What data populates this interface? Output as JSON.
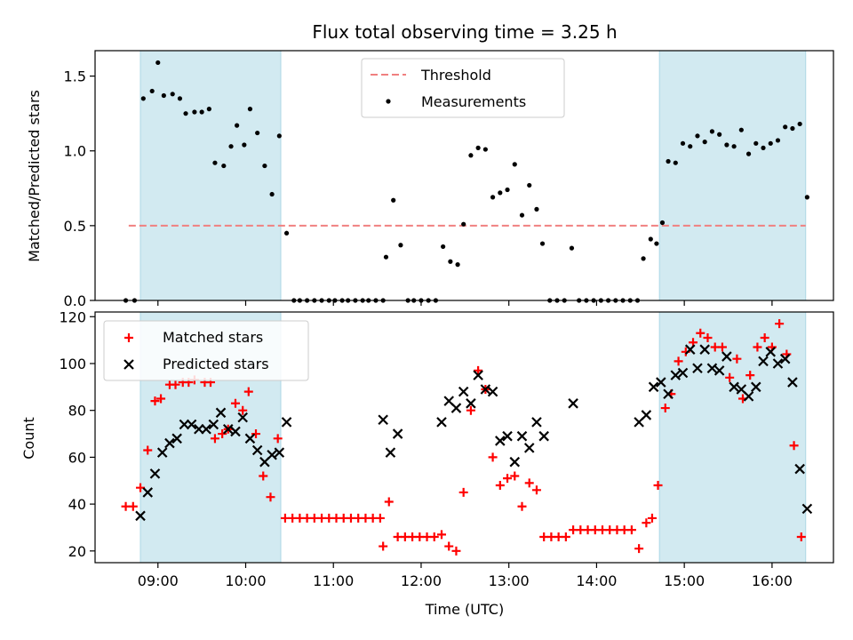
{
  "chart_data": [
    {
      "type": "scatter",
      "title": "Flux total observing time = 3.25 h",
      "ylabel": "Matched/Predicted stars",
      "xlim": [
        "08:17",
        "16:42"
      ],
      "ylim": [
        0,
        1.67
      ],
      "yticks": [
        "0.0",
        "0.5",
        "1.0",
        "1.5"
      ],
      "shaded_spans": [
        [
          "08:48",
          "10:24"
        ],
        [
          "14:43",
          "16:23"
        ]
      ],
      "shade_color": "#add8e6",
      "threshold": {
        "name": "Threshold",
        "y": 0.5,
        "color": "#f08080",
        "style": "dashed",
        "x_range": [
          "08:40",
          "16:23"
        ]
      },
      "series": [
        {
          "name": "Measurements",
          "color": "#000000",
          "points": [
            [
              "08:38",
              0.0
            ],
            [
              "08:44",
              0.0
            ],
            [
              "08:50",
              1.35
            ],
            [
              "08:56",
              1.4
            ],
            [
              "09:00",
              1.59
            ],
            [
              "09:04",
              1.37
            ],
            [
              "09:10",
              1.38
            ],
            [
              "09:15",
              1.35
            ],
            [
              "09:19",
              1.25
            ],
            [
              "09:25",
              1.26
            ],
            [
              "09:30",
              1.26
            ],
            [
              "09:35",
              1.28
            ],
            [
              "09:39",
              0.92
            ],
            [
              "09:45",
              0.9
            ],
            [
              "09:50",
              1.03
            ],
            [
              "09:54",
              1.17
            ],
            [
              "09:59",
              1.04
            ],
            [
              "10:03",
              1.28
            ],
            [
              "10:08",
              1.12
            ],
            [
              "10:13",
              0.9
            ],
            [
              "10:18",
              0.71
            ],
            [
              "10:23",
              1.1
            ],
            [
              "10:28",
              0.45
            ],
            [
              "10:33",
              0.0
            ],
            [
              "10:37",
              0.0
            ],
            [
              "10:42",
              0.0
            ],
            [
              "10:47",
              0.0
            ],
            [
              "10:52",
              0.0
            ],
            [
              "10:57",
              0.0
            ],
            [
              "11:01",
              0.0
            ],
            [
              "11:06",
              0.0
            ],
            [
              "11:10",
              0.0
            ],
            [
              "11:15",
              0.0
            ],
            [
              "11:20",
              0.0
            ],
            [
              "11:24",
              0.0
            ],
            [
              "11:29",
              0.0
            ],
            [
              "11:34",
              0.0
            ],
            [
              "11:36",
              0.29
            ],
            [
              "11:41",
              0.67
            ],
            [
              "11:46",
              0.37
            ],
            [
              "11:51",
              0.0
            ],
            [
              "11:55",
              0.0
            ],
            [
              "12:00",
              0.0
            ],
            [
              "12:05",
              0.0
            ],
            [
              "12:10",
              0.0
            ],
            [
              "12:15",
              0.36
            ],
            [
              "12:20",
              0.26
            ],
            [
              "12:25",
              0.24
            ],
            [
              "12:29",
              0.51
            ],
            [
              "12:34",
              0.97
            ],
            [
              "12:39",
              1.02
            ],
            [
              "12:44",
              1.01
            ],
            [
              "12:49",
              0.69
            ],
            [
              "12:54",
              0.72
            ],
            [
              "12:59",
              0.74
            ],
            [
              "13:04",
              0.91
            ],
            [
              "13:09",
              0.57
            ],
            [
              "13:14",
              0.77
            ],
            [
              "13:19",
              0.61
            ],
            [
              "13:23",
              0.38
            ],
            [
              "13:28",
              0.0
            ],
            [
              "13:33",
              0.0
            ],
            [
              "13:38",
              0.0
            ],
            [
              "13:43",
              0.35
            ],
            [
              "13:48",
              0.0
            ],
            [
              "13:53",
              0.0
            ],
            [
              "13:58",
              0.0
            ],
            [
              "14:03",
              0.0
            ],
            [
              "14:08",
              0.0
            ],
            [
              "14:13",
              0.0
            ],
            [
              "14:18",
              0.0
            ],
            [
              "14:23",
              0.0
            ],
            [
              "14:28",
              0.0
            ],
            [
              "14:32",
              0.28
            ],
            [
              "14:37",
              0.41
            ],
            [
              "14:41",
              0.38
            ],
            [
              "14:45",
              0.52
            ],
            [
              "14:49",
              0.93
            ],
            [
              "14:54",
              0.92
            ],
            [
              "14:59",
              1.05
            ],
            [
              "15:04",
              1.03
            ],
            [
              "15:09",
              1.1
            ],
            [
              "15:14",
              1.06
            ],
            [
              "15:19",
              1.13
            ],
            [
              "15:24",
              1.11
            ],
            [
              "15:29",
              1.04
            ],
            [
              "15:34",
              1.03
            ],
            [
              "15:39",
              1.14
            ],
            [
              "15:44",
              0.98
            ],
            [
              "15:49",
              1.05
            ],
            [
              "15:54",
              1.02
            ],
            [
              "15:59",
              1.05
            ],
            [
              "16:04",
              1.07
            ],
            [
              "16:09",
              1.16
            ],
            [
              "16:14",
              1.15
            ],
            [
              "16:19",
              1.18
            ],
            [
              "16:24",
              0.69
            ]
          ]
        }
      ]
    },
    {
      "type": "scatter",
      "xlabel": "Time (UTC)",
      "ylabel": "Count",
      "xlim": [
        "08:17",
        "16:42"
      ],
      "ylim": [
        15,
        122
      ],
      "xticks": [
        "09:00",
        "10:00",
        "11:00",
        "12:00",
        "13:00",
        "14:00",
        "15:00",
        "16:00"
      ],
      "yticks": [
        "20",
        "40",
        "60",
        "80",
        "100",
        "120"
      ],
      "shaded_spans": [
        [
          "08:48",
          "10:24"
        ],
        [
          "14:43",
          "16:23"
        ]
      ],
      "series": [
        {
          "name": "Matched stars",
          "marker": "plus",
          "color": "#ff0000",
          "points": [
            [
              "08:38",
              39
            ],
            [
              "08:43",
              39
            ],
            [
              "08:48",
              47
            ],
            [
              "08:53",
              63
            ],
            [
              "08:58",
              84
            ],
            [
              "09:02",
              85
            ],
            [
              "09:08",
              91
            ],
            [
              "09:12",
              91
            ],
            [
              "09:17",
              92
            ],
            [
              "09:21",
              92
            ],
            [
              "09:25",
              93
            ],
            [
              "09:32",
              92
            ],
            [
              "09:36",
              92
            ],
            [
              "09:39",
              68
            ],
            [
              "09:44",
              70
            ],
            [
              "09:48",
              72
            ],
            [
              "09:53",
              83
            ],
            [
              "09:58",
              80
            ],
            [
              "10:02",
              88
            ],
            [
              "10:07",
              70
            ],
            [
              "10:12",
              52
            ],
            [
              "10:17",
              43
            ],
            [
              "10:22",
              68
            ],
            [
              "10:27",
              34
            ],
            [
              "10:32",
              34
            ],
            [
              "10:37",
              34
            ],
            [
              "10:42",
              34
            ],
            [
              "10:47",
              34
            ],
            [
              "10:52",
              34
            ],
            [
              "10:57",
              34
            ],
            [
              "11:02",
              34
            ],
            [
              "11:07",
              34
            ],
            [
              "11:12",
              34
            ],
            [
              "11:17",
              34
            ],
            [
              "11:22",
              34
            ],
            [
              "11:27",
              34
            ],
            [
              "11:32",
              34
            ],
            [
              "11:34",
              22
            ],
            [
              "11:38",
              41
            ],
            [
              "11:44",
              26
            ],
            [
              "11:49",
              26
            ],
            [
              "11:54",
              26
            ],
            [
              "11:59",
              26
            ],
            [
              "12:04",
              26
            ],
            [
              "12:09",
              26
            ],
            [
              "12:14",
              27
            ],
            [
              "12:19",
              22
            ],
            [
              "12:24",
              20
            ],
            [
              "12:29",
              45
            ],
            [
              "12:34",
              80
            ],
            [
              "12:39",
              97
            ],
            [
              "12:44",
              89
            ],
            [
              "12:49",
              60
            ],
            [
              "12:54",
              48
            ],
            [
              "12:59",
              51
            ],
            [
              "13:04",
              52
            ],
            [
              "13:09",
              39
            ],
            [
              "13:14",
              49
            ],
            [
              "13:19",
              46
            ],
            [
              "13:24",
              26
            ],
            [
              "13:29",
              26
            ],
            [
              "13:34",
              26
            ],
            [
              "13:39",
              26
            ],
            [
              "13:44",
              29
            ],
            [
              "13:49",
              29
            ],
            [
              "13:54",
              29
            ],
            [
              "13:59",
              29
            ],
            [
              "14:04",
              29
            ],
            [
              "14:09",
              29
            ],
            [
              "14:14",
              29
            ],
            [
              "14:19",
              29
            ],
            [
              "14:24",
              29
            ],
            [
              "14:29",
              21
            ],
            [
              "14:34",
              32
            ],
            [
              "14:38",
              34
            ],
            [
              "14:42",
              48
            ],
            [
              "14:47",
              81
            ],
            [
              "14:51",
              87
            ],
            [
              "14:56",
              101
            ],
            [
              "15:01",
              105
            ],
            [
              "15:06",
              109
            ],
            [
              "15:11",
              113
            ],
            [
              "15:16",
              111
            ],
            [
              "15:21",
              107
            ],
            [
              "15:26",
              107
            ],
            [
              "15:31",
              94
            ],
            [
              "15:36",
              102
            ],
            [
              "15:40",
              85
            ],
            [
              "15:45",
              95
            ],
            [
              "15:50",
              107
            ],
            [
              "15:55",
              111
            ],
            [
              "16:00",
              107
            ],
            [
              "16:05",
              117
            ],
            [
              "16:10",
              104
            ],
            [
              "16:15",
              65
            ],
            [
              "16:20",
              26
            ]
          ]
        },
        {
          "name": "Predicted stars",
          "marker": "x",
          "color": "#000000",
          "points": [
            [
              "08:48",
              35
            ],
            [
              "08:53",
              45
            ],
            [
              "08:58",
              53
            ],
            [
              "09:03",
              62
            ],
            [
              "09:08",
              66
            ],
            [
              "09:13",
              68
            ],
            [
              "09:18",
              74
            ],
            [
              "09:23",
              74
            ],
            [
              "09:28",
              72
            ],
            [
              "09:33",
              72
            ],
            [
              "09:38",
              74
            ],
            [
              "09:43",
              79
            ],
            [
              "09:48",
              72
            ],
            [
              "09:53",
              71
            ],
            [
              "09:58",
              77
            ],
            [
              "10:03",
              68
            ],
            [
              "10:08",
              63
            ],
            [
              "10:13",
              58
            ],
            [
              "10:18",
              61
            ],
            [
              "10:23",
              62
            ],
            [
              "10:28",
              75
            ],
            [
              "11:34",
              76
            ],
            [
              "11:39",
              62
            ],
            [
              "11:44",
              70
            ],
            [
              "12:14",
              75
            ],
            [
              "12:19",
              84
            ],
            [
              "12:24",
              81
            ],
            [
              "12:29",
              88
            ],
            [
              "12:34",
              83
            ],
            [
              "12:39",
              95
            ],
            [
              "12:44",
              89
            ],
            [
              "12:49",
              88
            ],
            [
              "12:54",
              67
            ],
            [
              "12:59",
              69
            ],
            [
              "13:04",
              58
            ],
            [
              "13:09",
              69
            ],
            [
              "13:14",
              64
            ],
            [
              "13:19",
              75
            ],
            [
              "13:24",
              69
            ],
            [
              "13:44",
              83
            ],
            [
              "14:29",
              75
            ],
            [
              "14:34",
              78
            ],
            [
              "14:39",
              90
            ],
            [
              "14:44",
              92
            ],
            [
              "14:49",
              87
            ],
            [
              "14:54",
              95
            ],
            [
              "14:59",
              96
            ],
            [
              "15:04",
              106
            ],
            [
              "15:09",
              98
            ],
            [
              "15:14",
              106
            ],
            [
              "15:19",
              98
            ],
            [
              "15:24",
              97
            ],
            [
              "15:29",
              103
            ],
            [
              "15:34",
              90
            ],
            [
              "15:39",
              89
            ],
            [
              "15:44",
              86
            ],
            [
              "15:49",
              90
            ],
            [
              "15:54",
              101
            ],
            [
              "15:59",
              105
            ],
            [
              "16:04",
              100
            ],
            [
              "16:09",
              102
            ],
            [
              "16:14",
              92
            ],
            [
              "16:19",
              55
            ],
            [
              "16:24",
              38
            ]
          ]
        }
      ]
    }
  ]
}
